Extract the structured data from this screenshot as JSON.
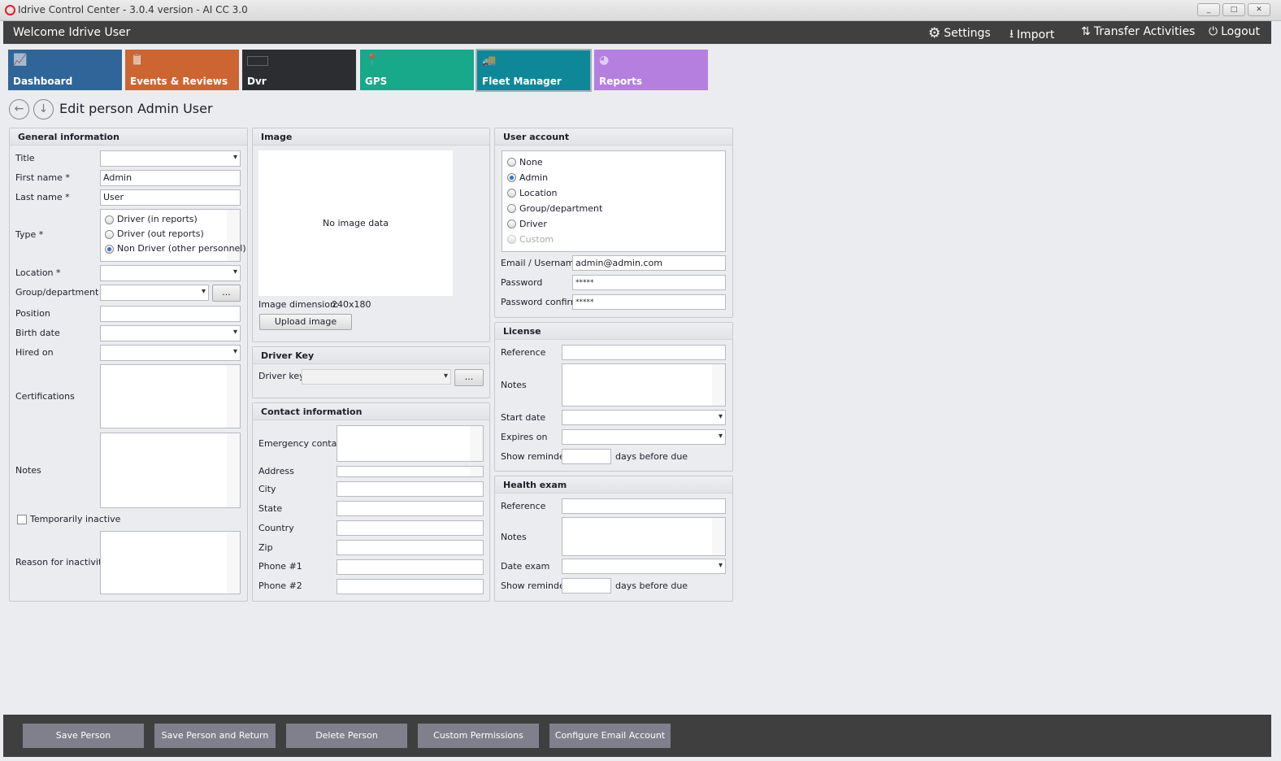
{
  "window": {
    "title": "Idrive Control Center - 3.0.4 version - AI CC 3.0",
    "minimize": "_",
    "maximize": "□",
    "close": "✕"
  },
  "topbar": {
    "welcome": "Welcome Idrive User",
    "settings": "Settings",
    "import": "Import",
    "transfer": "Transfer Activities",
    "logout": "Logout"
  },
  "tiles": [
    {
      "label": "Dashboard",
      "color": "#2f6598",
      "icon": "chart-icon"
    },
    {
      "label": "Events & Reviews",
      "color": "#cd6532",
      "icon": "clipboard-icon"
    },
    {
      "label": "Dvr",
      "color": "#2b2d31",
      "icon": "dvr-icon"
    },
    {
      "label": "GPS",
      "color": "#18a88a",
      "icon": "map-pin-icon"
    },
    {
      "label": "Fleet Manager",
      "color": "#0e8899",
      "icon": "trucks-icon",
      "active": true
    },
    {
      "label": "Reports",
      "color": "#b57fe0",
      "icon": "pie-icon"
    }
  ],
  "page": {
    "title": "Edit person Admin User"
  },
  "general": {
    "header": "General information",
    "title_label": "Title",
    "title_value": "",
    "first_label": "First name *",
    "first_value": "Admin",
    "last_label": "Last name *",
    "last_value": "User",
    "type_label": "Type *",
    "type_options": [
      "Driver (in reports)",
      "Driver (out reports)",
      "Non Driver (other personnel)"
    ],
    "type_selected": "Non Driver (other personnel)",
    "location_label": "Location *",
    "group_label": "Group/department",
    "browse": "...",
    "position_label": "Position",
    "birth_label": "Birth date",
    "hired_label": "Hired on",
    "cert_label": "Certifications",
    "notes_label": "Notes",
    "inactive_label": "Temporarily inactive",
    "reason_label": "Reason for inactivity"
  },
  "image": {
    "header": "Image",
    "empty": "No image data",
    "dimension_label": "Image dimension:",
    "dimension_value": "240x180",
    "upload": "Upload image"
  },
  "driverkey": {
    "header": "Driver Key",
    "label": "Driver key",
    "browse": "..."
  },
  "contact": {
    "header": "Contact information",
    "emergency": "Emergency contact",
    "address": "Address",
    "city": "City",
    "state": "State",
    "country": "Country",
    "zip": "Zip",
    "phone1": "Phone #1",
    "phone2": "Phone #2"
  },
  "account": {
    "header": "User account",
    "options": [
      "None",
      "Admin",
      "Location",
      "Group/department",
      "Driver",
      "Custom"
    ],
    "selected": "Admin",
    "disabled": "Custom",
    "email_label": "Email / Username",
    "email_value": "admin@admin.com",
    "password_label": "Password",
    "password_value": "*****",
    "confirm_label": "Password confirm",
    "confirm_value": "*****"
  },
  "license": {
    "header": "License",
    "reference": "Reference",
    "notes": "Notes",
    "start": "Start date",
    "expires": "Expires on",
    "reminder": "Show reminder",
    "days": "days before due"
  },
  "health": {
    "header": "Health exam",
    "reference": "Reference",
    "notes": "Notes",
    "date": "Date exam",
    "reminder": "Show reminder",
    "days": "days before due"
  },
  "actions": [
    "Save Person",
    "Save Person and Return",
    "Delete Person",
    "Custom Permissions",
    "Configure Email Account"
  ]
}
